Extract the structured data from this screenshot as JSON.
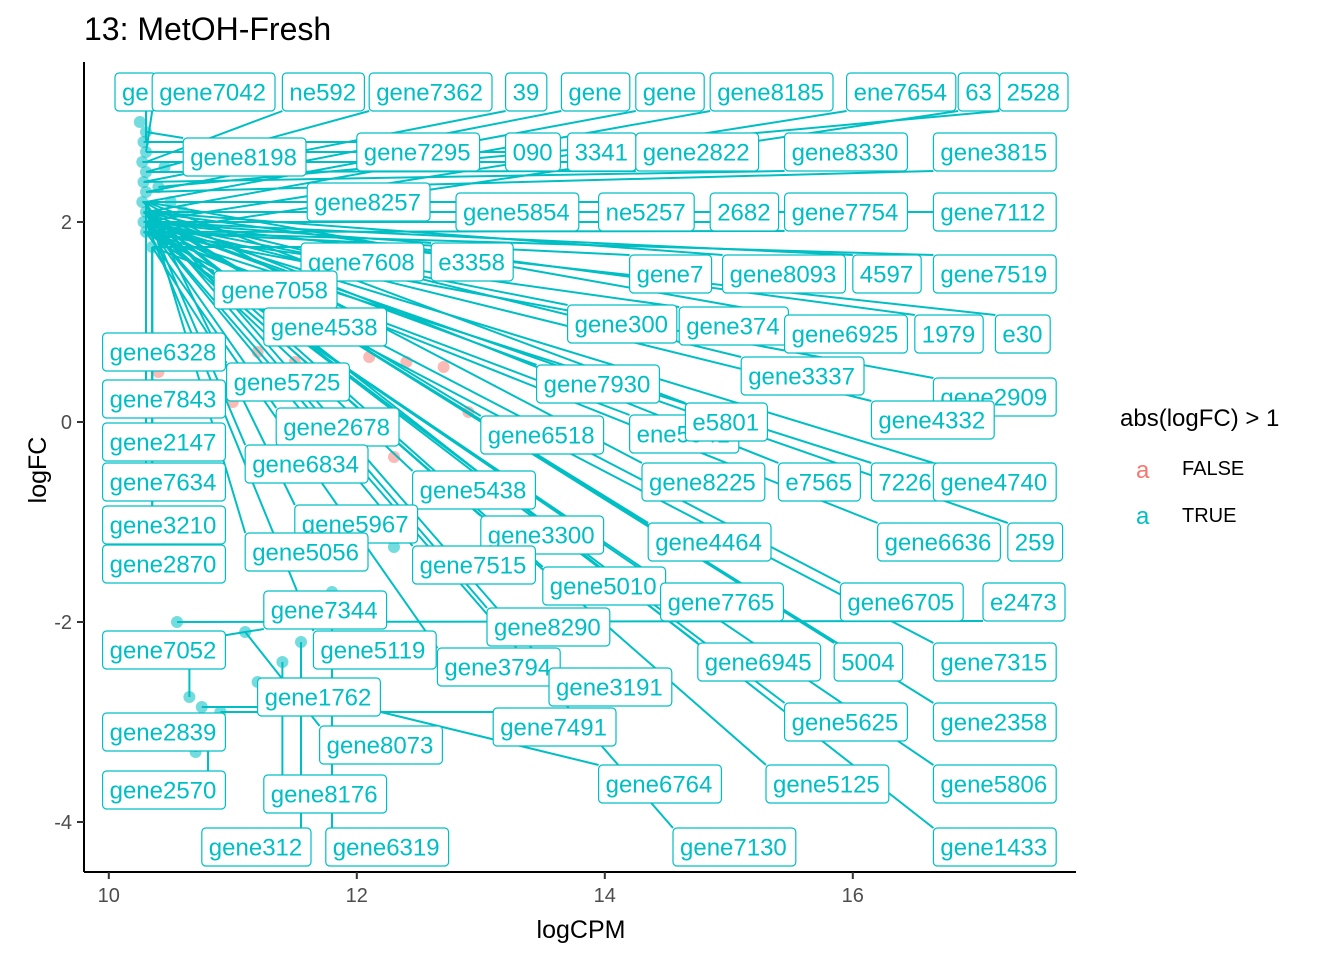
{
  "chart_data": {
    "type": "scatter",
    "title": "13: MetOH-Fresh",
    "xlabel": "logCPM",
    "ylabel": "logFC",
    "xlim": [
      9.8,
      17.8
    ],
    "ylim": [
      -4.5,
      3.6
    ],
    "xticks": [
      10,
      12,
      14,
      16
    ],
    "yticks": [
      -4,
      -2,
      0,
      2
    ],
    "xtick_labels": [
      "10",
      "12",
      "14",
      "16"
    ],
    "ytick_labels": [
      "-4",
      "-2",
      "0",
      "2"
    ],
    "grid": false,
    "legend": {
      "title": "abs(logFC) > 1",
      "position": "right",
      "key_glyph": "a",
      "entries": [
        {
          "label": "FALSE",
          "color": "#f8766d"
        },
        {
          "label": "TRUE",
          "color": "#00bfc4"
        }
      ]
    },
    "points_false": [
      [
        11.2,
        0.7
      ],
      [
        11.5,
        0.6
      ],
      [
        11.8,
        0.5
      ],
      [
        12.1,
        0.65
      ],
      [
        12.4,
        0.6
      ],
      [
        12.7,
        0.55
      ],
      [
        10.5,
        0.1
      ],
      [
        11.0,
        0.2
      ],
      [
        11.6,
        -0.2
      ],
      [
        12.3,
        -0.35
      ],
      [
        12.9,
        0.1
      ],
      [
        10.4,
        0.5
      ]
    ],
    "points_true": [
      [
        10.25,
        3.0
      ],
      [
        10.3,
        2.9
      ],
      [
        10.28,
        2.8
      ],
      [
        10.3,
        2.7
      ],
      [
        10.27,
        2.6
      ],
      [
        10.3,
        2.5
      ],
      [
        10.28,
        2.4
      ],
      [
        10.3,
        2.3
      ],
      [
        10.27,
        2.2
      ],
      [
        10.3,
        2.1
      ],
      [
        10.28,
        2.0
      ],
      [
        10.3,
        1.9
      ],
      [
        10.4,
        2.35
      ],
      [
        10.5,
        2.2
      ],
      [
        10.35,
        1.75
      ],
      [
        10.6,
        2.1
      ],
      [
        10.45,
        2.55
      ],
      [
        10.55,
        -2.0
      ],
      [
        10.6,
        -2.2
      ],
      [
        10.65,
        -2.75
      ],
      [
        10.75,
        -2.85
      ],
      [
        10.9,
        -2.9
      ],
      [
        10.7,
        -3.3
      ],
      [
        11.1,
        -2.1
      ],
      [
        11.2,
        -2.6
      ],
      [
        11.4,
        -2.4
      ],
      [
        11.8,
        -1.7
      ],
      [
        12.3,
        -1.25
      ],
      [
        11.55,
        -2.2
      ],
      [
        10.8,
        -3.0
      ]
    ],
    "labels": [
      {
        "text": "ge",
        "box_x": 10.05,
        "y": 3.3,
        "x": 10.3,
        "py": 2.8
      },
      {
        "text": "gene7042",
        "box_x": 10.35,
        "y": 3.3,
        "x": 10.3,
        "py": 2.7
      },
      {
        "text": "ne592",
        "box_x": 11.4,
        "y": 3.3,
        "x": 10.3,
        "py": 2.6
      },
      {
        "text": "gene7362",
        "box_x": 12.1,
        "y": 3.3,
        "x": 10.3,
        "py": 2.5
      },
      {
        "text": "39",
        "box_x": 13.2,
        "y": 3.3,
        "x": 10.28,
        "py": 2.4
      },
      {
        "text": "gene",
        "box_x": 13.65,
        "y": 3.3,
        "x": 10.3,
        "py": 2.3
      },
      {
        "text": "gene",
        "box_x": 14.25,
        "y": 3.3,
        "x": 10.3,
        "py": 2.2
      },
      {
        "text": "gene8185",
        "box_x": 14.85,
        "y": 3.3,
        "x": 10.3,
        "py": 2.1
      },
      {
        "text": "ene7654",
        "box_x": 15.95,
        "y": 3.3,
        "x": 10.28,
        "py": 2.0
      },
      {
        "text": "63",
        "box_x": 16.85,
        "y": 3.3,
        "x": 10.3,
        "py": 1.9
      },
      {
        "text": "2528",
        "box_x": 17.25,
        "y": 3.3,
        "x": 10.4,
        "py": 2.35
      },
      {
        "text": "gene8198",
        "box_x": 10.6,
        "y": 2.65,
        "x": 10.3,
        "py": 2.9
      },
      {
        "text": "gene7295",
        "box_x": 12.0,
        "y": 2.7,
        "x": 10.28,
        "py": 2.8
      },
      {
        "text": "090",
        "box_x": 13.2,
        "y": 2.7,
        "x": 10.3,
        "py": 2.7
      },
      {
        "text": "3341",
        "box_x": 13.7,
        "y": 2.7,
        "x": 10.27,
        "py": 2.6
      },
      {
        "text": "gene2822",
        "box_x": 14.25,
        "y": 2.7,
        "x": 10.3,
        "py": 2.5
      },
      {
        "text": "gene8330",
        "box_x": 15.45,
        "y": 2.7,
        "x": 10.28,
        "py": 2.4
      },
      {
        "text": "gene3815",
        "box_x": 16.65,
        "y": 2.7,
        "x": 10.3,
        "py": 2.3
      },
      {
        "text": "gene8257",
        "box_x": 11.6,
        "y": 2.2,
        "x": 10.27,
        "py": 2.2
      },
      {
        "text": "gene5854",
        "box_x": 12.8,
        "y": 2.1,
        "x": 10.3,
        "py": 2.1
      },
      {
        "text": "ne5257",
        "box_x": 13.95,
        "y": 2.1,
        "x": 10.5,
        "py": 2.2
      },
      {
        "text": "2682",
        "box_x": 14.85,
        "y": 2.1,
        "x": 10.28,
        "py": 2.0
      },
      {
        "text": "gene7754",
        "box_x": 15.45,
        "y": 2.1,
        "x": 10.3,
        "py": 1.9
      },
      {
        "text": "gene7112",
        "box_x": 16.65,
        "y": 2.1,
        "x": 10.6,
        "py": 2.1
      },
      {
        "text": "gene7608",
        "box_x": 11.55,
        "y": 1.6,
        "x": 10.35,
        "py": 1.75
      },
      {
        "text": "e3358",
        "box_x": 12.6,
        "y": 1.6,
        "x": 10.3,
        "py": 2.0
      },
      {
        "text": "gene7",
        "box_x": 14.2,
        "y": 1.48,
        "x": 10.3,
        "py": 1.9
      },
      {
        "text": "gene8093",
        "box_x": 14.95,
        "y": 1.48,
        "x": 10.28,
        "py": 2.1
      },
      {
        "text": "4597",
        "box_x": 16.0,
        "y": 1.48,
        "x": 10.3,
        "py": 2.0
      },
      {
        "text": "gene7519",
        "box_x": 16.65,
        "y": 1.48,
        "x": 10.3,
        "py": 1.9
      },
      {
        "text": "gene7058",
        "box_x": 10.85,
        "y": 1.32,
        "x": 10.35,
        "py": 1.75
      },
      {
        "text": "gene4538",
        "box_x": 11.25,
        "y": 0.95,
        "x": 10.3,
        "py": 2.1
      },
      {
        "text": "gene300",
        "box_x": 13.7,
        "y": 0.98,
        "x": 10.3,
        "py": 2.0
      },
      {
        "text": "gene374",
        "box_x": 14.6,
        "y": 0.96,
        "x": 10.28,
        "py": 1.9
      },
      {
        "text": "gene6925",
        "box_x": 15.45,
        "y": 0.88,
        "x": 10.3,
        "py": 2.2
      },
      {
        "text": "1979",
        "box_x": 16.5,
        "y": 0.88,
        "x": 10.3,
        "py": 2.1
      },
      {
        "text": "e30",
        "box_x": 17.15,
        "y": 0.88,
        "x": 10.3,
        "py": 2.0
      },
      {
        "text": "gene6328",
        "box_x": 9.95,
        "y": 0.7,
        "x": 10.3,
        "py": 1.9
      },
      {
        "text": "gene5725",
        "box_x": 10.95,
        "y": 0.4,
        "x": 10.35,
        "py": 1.75
      },
      {
        "text": "gene7930",
        "box_x": 13.45,
        "y": 0.38,
        "x": 10.3,
        "py": 2.0
      },
      {
        "text": "gene3337",
        "box_x": 15.1,
        "y": 0.46,
        "x": 10.3,
        "py": 2.1
      },
      {
        "text": "gene2909",
        "box_x": 16.65,
        "y": 0.25,
        "x": 10.28,
        "py": 1.9
      },
      {
        "text": "gene7843",
        "box_x": 9.95,
        "y": 0.23,
        "x": 10.3,
        "py": 2.2
      },
      {
        "text": "gene2678",
        "box_x": 11.35,
        "y": -0.05,
        "x": 10.3,
        "py": 2.0
      },
      {
        "text": "gene6518",
        "box_x": 13.0,
        "y": -0.13,
        "x": 10.3,
        "py": 2.1
      },
      {
        "text": "ene5941",
        "box_x": 14.2,
        "y": -0.12,
        "x": 10.28,
        "py": 1.9
      },
      {
        "text": "e5801",
        "box_x": 14.65,
        "y": 0.0,
        "x": 10.3,
        "py": 2.2
      },
      {
        "text": "gene4332",
        "box_x": 16.15,
        "y": 0.02,
        "x": 10.3,
        "py": 2.0
      },
      {
        "text": "gene2147",
        "box_x": 9.95,
        "y": -0.2,
        "x": 10.35,
        "py": 1.75
      },
      {
        "text": "gene6834",
        "box_x": 11.1,
        "y": -0.42,
        "x": 10.3,
        "py": 2.1
      },
      {
        "text": "gene7634",
        "box_x": 9.95,
        "y": -0.6,
        "x": 10.3,
        "py": 1.9
      },
      {
        "text": "gene5438",
        "box_x": 12.45,
        "y": -0.68,
        "x": 10.3,
        "py": 2.0
      },
      {
        "text": "gene8225",
        "box_x": 14.3,
        "y": -0.6,
        "x": 10.28,
        "py": 2.2
      },
      {
        "text": "e7565",
        "box_x": 15.4,
        "y": -0.6,
        "x": 10.3,
        "py": 2.1
      },
      {
        "text": "7226",
        "box_x": 16.15,
        "y": -0.6,
        "x": 10.3,
        "py": 1.9
      },
      {
        "text": "gene4740",
        "box_x": 16.65,
        "y": -0.6,
        "x": 10.3,
        "py": 2.0
      },
      {
        "text": "gene3210",
        "box_x": 9.95,
        "y": -1.03,
        "x": 10.35,
        "py": 1.75
      },
      {
        "text": "gene5967",
        "box_x": 11.5,
        "y": -1.02,
        "x": 10.3,
        "py": 2.2
      },
      {
        "text": "gene3300",
        "box_x": 13.0,
        "y": -1.13,
        "x": 10.3,
        "py": 2.0
      },
      {
        "text": "gene4464",
        "box_x": 14.35,
        "y": -1.2,
        "x": 10.28,
        "py": 2.1
      },
      {
        "text": "gene6636",
        "box_x": 16.2,
        "y": -1.2,
        "x": 10.3,
        "py": 1.9
      },
      {
        "text": "259",
        "box_x": 17.25,
        "y": -1.2,
        "x": 10.3,
        "py": 2.0
      },
      {
        "text": "gene2870",
        "box_x": 9.95,
        "y": -1.42,
        "x": 10.35,
        "py": 1.75
      },
      {
        "text": "gene5056",
        "box_x": 11.1,
        "y": -1.3,
        "x": 10.3,
        "py": 2.2
      },
      {
        "text": "gene7515",
        "box_x": 12.45,
        "y": -1.43,
        "x": 10.3,
        "py": 2.0
      },
      {
        "text": "gene5010",
        "box_x": 13.5,
        "y": -1.64,
        "x": 10.28,
        "py": 2.1
      },
      {
        "text": "gene7765",
        "box_x": 14.45,
        "y": -1.8,
        "x": 10.3,
        "py": 1.9
      },
      {
        "text": "gene6705",
        "box_x": 15.9,
        "y": -1.8,
        "x": 10.3,
        "py": 2.0
      },
      {
        "text": "e2473",
        "box_x": 17.05,
        "y": -1.8,
        "x": 10.55,
        "py": -2.0
      },
      {
        "text": "gene7344",
        "box_x": 11.25,
        "y": -1.88,
        "x": 10.6,
        "py": -2.2
      },
      {
        "text": "gene8290",
        "box_x": 13.05,
        "y": -2.05,
        "x": 10.3,
        "py": 2.1
      },
      {
        "text": "gene7052",
        "box_x": 9.95,
        "y": -2.28,
        "x": 10.65,
        "py": -2.75
      },
      {
        "text": "gene5119",
        "box_x": 11.65,
        "y": -2.28,
        "x": 10.3,
        "py": 2.0
      },
      {
        "text": "gene3794",
        "box_x": 12.65,
        "y": -2.45,
        "x": 10.3,
        "py": 1.9
      },
      {
        "text": "gene3191",
        "box_x": 13.55,
        "y": -2.65,
        "x": 10.28,
        "py": 2.2
      },
      {
        "text": "gene6945",
        "box_x": 14.75,
        "y": -2.4,
        "x": 10.3,
        "py": 2.0
      },
      {
        "text": "5004",
        "box_x": 15.85,
        "y": -2.4,
        "x": 10.3,
        "py": 2.1
      },
      {
        "text": "gene7315",
        "box_x": 16.65,
        "y": -2.4,
        "x": 10.3,
        "py": 1.9
      },
      {
        "text": "gene1762",
        "box_x": 11.2,
        "y": -2.75,
        "x": 10.75,
        "py": -2.85
      },
      {
        "text": "gene7491",
        "box_x": 13.1,
        "y": -3.05,
        "x": 10.9,
        "py": -2.9
      },
      {
        "text": "gene5625",
        "box_x": 15.45,
        "y": -3.0,
        "x": 10.3,
        "py": 2.0
      },
      {
        "text": "gene2358",
        "box_x": 16.65,
        "y": -3.0,
        "x": 10.3,
        "py": 2.1
      },
      {
        "text": "gene2839",
        "box_x": 9.95,
        "y": -3.1,
        "x": 10.7,
        "py": -3.3
      },
      {
        "text": "gene8073",
        "box_x": 11.7,
        "y": -3.23,
        "x": 11.1,
        "py": -2.1
      },
      {
        "text": "gene6764",
        "box_x": 13.95,
        "y": -3.62,
        "x": 11.2,
        "py": -2.6
      },
      {
        "text": "gene5125",
        "box_x": 15.3,
        "y": -3.62,
        "x": 10.3,
        "py": 2.0
      },
      {
        "text": "gene5806",
        "box_x": 16.65,
        "y": -3.62,
        "x": 10.3,
        "py": 1.9
      },
      {
        "text": "gene2570",
        "box_x": 9.95,
        "y": -3.68,
        "x": 10.8,
        "py": -3.0
      },
      {
        "text": "gene8176",
        "box_x": 11.25,
        "y": -3.72,
        "x": 11.4,
        "py": -2.4
      },
      {
        "text": "gene312",
        "box_x": 10.75,
        "y": -4.25,
        "x": 11.55,
        "py": -2.2
      },
      {
        "text": "gene6319",
        "box_x": 11.75,
        "y": -4.25,
        "x": 11.8,
        "py": -1.7
      },
      {
        "text": "gene7130",
        "box_x": 14.55,
        "y": -4.25,
        "x": 10.3,
        "py": 2.0
      },
      {
        "text": "gene1433",
        "box_x": 16.65,
        "y": -4.25,
        "x": 10.3,
        "py": 2.1
      }
    ]
  }
}
